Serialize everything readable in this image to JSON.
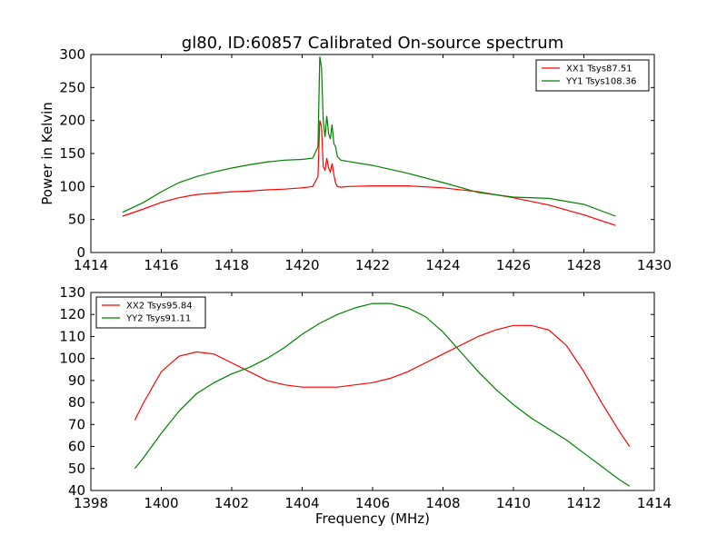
{
  "chart_data": [
    {
      "type": "line",
      "title": "gl80, ID:60857 Calibrated On-source spectrum",
      "xlabel": "",
      "ylabel": "Power in Kelvin",
      "xlim": [
        1414,
        1430
      ],
      "ylim": [
        0,
        300
      ],
      "xticks": [
        1414,
        1416,
        1418,
        1420,
        1422,
        1424,
        1426,
        1428,
        1430
      ],
      "yticks": [
        0,
        50,
        100,
        150,
        200,
        250,
        300
      ],
      "legend_position": "top-right",
      "grid": false,
      "series": [
        {
          "name": "XX1 Tsys87.51",
          "color": "#ff0000",
          "x": [
            1414.9,
            1415.5,
            1416.0,
            1416.5,
            1417.0,
            1417.5,
            1418.0,
            1418.5,
            1419.0,
            1419.5,
            1420.0,
            1420.3,
            1420.45,
            1420.5,
            1420.55,
            1420.6,
            1420.65,
            1420.7,
            1420.75,
            1420.8,
            1420.85,
            1420.9,
            1420.95,
            1421.0,
            1421.1,
            1421.3,
            1422.0,
            1423.0,
            1424.0,
            1425.0,
            1426.0,
            1427.0,
            1428.0,
            1428.9
          ],
          "y": [
            55,
            66,
            76,
            83,
            88,
            90,
            92,
            93,
            95,
            96,
            98,
            100,
            115,
            200,
            190,
            130,
            125,
            143,
            128,
            122,
            135,
            118,
            105,
            100,
            99,
            100,
            101,
            101,
            98,
            92,
            83,
            72,
            57,
            41
          ]
        },
        {
          "name": "YY1 Tsys108.36",
          "color": "#008000",
          "x": [
            1414.9,
            1415.5,
            1416.0,
            1416.5,
            1417.0,
            1417.5,
            1418.0,
            1418.5,
            1419.0,
            1419.5,
            1420.0,
            1420.3,
            1420.45,
            1420.5,
            1420.55,
            1420.6,
            1420.65,
            1420.7,
            1420.75,
            1420.8,
            1420.85,
            1420.9,
            1420.95,
            1421.0,
            1421.1,
            1421.3,
            1422.0,
            1423.0,
            1424.0,
            1425.0,
            1426.0,
            1427.0,
            1428.0,
            1428.9
          ],
          "y": [
            61,
            76,
            92,
            106,
            115,
            122,
            128,
            133,
            137,
            140,
            141,
            143,
            160,
            297,
            280,
            200,
            175,
            207,
            180,
            172,
            194,
            165,
            160,
            145,
            140,
            138,
            132,
            120,
            106,
            91,
            84,
            82,
            73,
            55
          ]
        }
      ]
    },
    {
      "type": "line",
      "title": "",
      "xlabel": "Frequency (MHz)",
      "ylabel": "",
      "xlim": [
        1398,
        1414
      ],
      "ylim": [
        40,
        130
      ],
      "xticks": [
        1398,
        1400,
        1402,
        1404,
        1406,
        1408,
        1410,
        1412,
        1414
      ],
      "yticks": [
        40,
        50,
        60,
        70,
        80,
        90,
        100,
        110,
        120,
        130
      ],
      "legend_position": "top-left",
      "grid": false,
      "series": [
        {
          "name": "XX2 Tsys95.84",
          "color": "#ff0000",
          "x": [
            1399.25,
            1399.5,
            1400.0,
            1400.5,
            1401.0,
            1401.5,
            1402.0,
            1402.5,
            1403.0,
            1403.5,
            1404.0,
            1404.5,
            1405.0,
            1405.5,
            1406.0,
            1406.5,
            1407.0,
            1407.5,
            1408.0,
            1408.5,
            1409.0,
            1409.5,
            1410.0,
            1410.5,
            1411.0,
            1411.5,
            1412.0,
            1412.5,
            1413.0,
            1413.3
          ],
          "y": [
            72,
            80,
            94,
            101,
            103,
            102,
            98,
            94,
            90,
            88,
            87,
            87,
            87,
            88,
            89,
            91,
            94,
            98,
            102,
            106,
            110,
            113,
            115,
            115,
            113,
            106,
            94,
            80,
            67,
            60
          ]
        },
        {
          "name": "YY2 Tsys91.11",
          "color": "#008000",
          "x": [
            1399.25,
            1399.5,
            1400.0,
            1400.5,
            1401.0,
            1401.5,
            1402.0,
            1402.5,
            1403.0,
            1403.5,
            1404.0,
            1404.5,
            1405.0,
            1405.5,
            1406.0,
            1406.5,
            1407.0,
            1407.5,
            1408.0,
            1408.5,
            1409.0,
            1409.5,
            1410.0,
            1410.5,
            1411.0,
            1411.5,
            1412.0,
            1412.5,
            1413.0,
            1413.3
          ],
          "y": [
            50,
            55,
            66,
            76,
            84,
            89,
            93,
            96,
            100,
            105,
            111,
            116,
            120,
            123,
            125,
            125,
            123,
            119,
            112,
            103,
            94,
            86,
            79,
            73,
            68,
            63,
            57,
            51,
            45,
            42
          ]
        }
      ]
    }
  ]
}
